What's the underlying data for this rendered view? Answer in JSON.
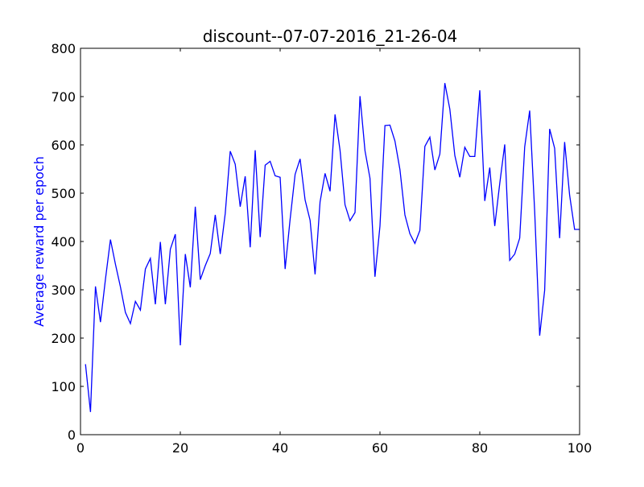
{
  "chart_data": {
    "type": "line",
    "title": "discount--07-07-2016_21-26-04",
    "xlabel": "",
    "ylabel": "Average reward per epoch",
    "xlim": [
      0,
      100
    ],
    "ylim": [
      0,
      800
    ],
    "x_ticks": [
      0,
      20,
      40,
      60,
      80,
      100
    ],
    "y_ticks": [
      0,
      100,
      200,
      300,
      400,
      500,
      600,
      700,
      800
    ],
    "grid": false,
    "legend": "none",
    "colors": {
      "line": "#0000ff",
      "ylabel": "#0000ff",
      "axes": "#000000"
    },
    "series": [
      {
        "x": [
          1,
          2,
          3,
          4,
          5,
          6,
          7,
          8,
          9,
          10,
          11,
          12,
          13,
          14,
          15,
          16,
          17,
          18,
          19,
          20,
          21,
          22,
          23,
          24,
          25,
          26,
          27,
          28,
          29,
          30,
          31,
          32,
          33,
          34,
          35,
          36,
          37,
          38,
          39,
          40,
          41,
          42,
          43,
          44,
          45,
          46,
          47,
          48,
          49,
          50,
          51,
          52,
          53,
          54,
          55,
          56,
          57,
          58,
          59,
          60,
          61,
          62,
          63,
          64,
          65,
          66,
          67,
          68,
          69,
          70,
          71,
          72,
          73,
          74,
          75,
          76,
          77,
          78,
          79,
          80,
          81,
          82,
          83,
          84,
          85,
          86,
          87,
          88,
          89,
          90,
          91,
          92,
          93,
          94,
          95,
          96,
          97,
          98,
          99,
          100
        ],
        "values": [
          146,
          47,
          307,
          233,
          322,
          404,
          353,
          306,
          253,
          230,
          276,
          258,
          343,
          365,
          270,
          399,
          270,
          384,
          415,
          185,
          374,
          305,
          472,
          321,
          350,
          375,
          455,
          374,
          458,
          587,
          560,
          472,
          535,
          388,
          589,
          409,
          558,
          566,
          536,
          533,
          343,
          446,
          539,
          571,
          486,
          444,
          332,
          482,
          541,
          504,
          663,
          589,
          476,
          443,
          460,
          701,
          588,
          531,
          327,
          432,
          640,
          641,
          608,
          549,
          455,
          416,
          396,
          423,
          597,
          616,
          548,
          581,
          728,
          674,
          578,
          533,
          595,
          576,
          576,
          713,
          484,
          553,
          432,
          520,
          601,
          361,
          374,
          407,
          596,
          671,
          462,
          205,
          299,
          633,
          593,
          407,
          606,
          496,
          425,
          425
        ]
      }
    ]
  }
}
